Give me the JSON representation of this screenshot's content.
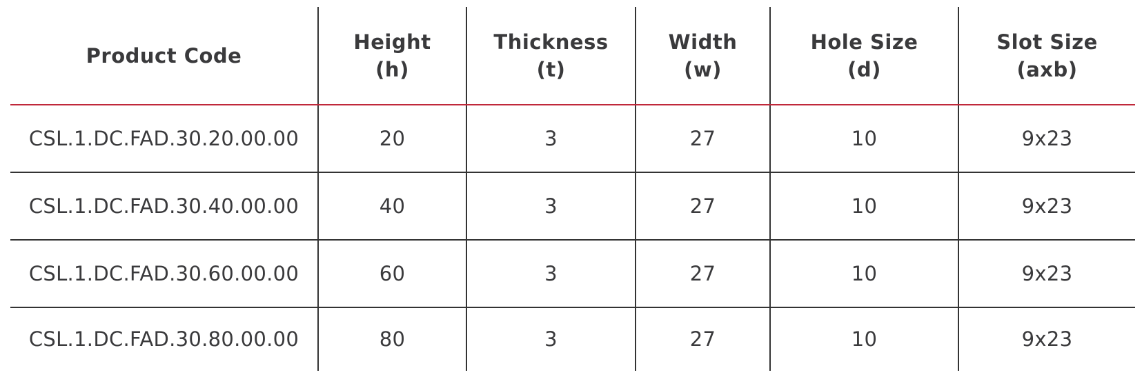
{
  "table": {
    "headers": [
      {
        "line1": "Product Code",
        "line2": ""
      },
      {
        "line1": "Height",
        "line2": "(h)"
      },
      {
        "line1": "Thickness",
        "line2": "(t)"
      },
      {
        "line1": "Width",
        "line2": "(w)"
      },
      {
        "line1": "Hole Size",
        "line2": "(d)"
      },
      {
        "line1": "Slot Size",
        "line2": "(axb)"
      }
    ],
    "rows": [
      [
        "CSL.1.DC.FAD.30.20.00.00",
        "20",
        "3",
        "27",
        "10",
        "9x23"
      ],
      [
        "CSL.1.DC.FAD.30.40.00.00",
        "40",
        "3",
        "27",
        "10",
        "9x23"
      ],
      [
        "CSL.1.DC.FAD.30.60.00.00",
        "60",
        "3",
        "27",
        "10",
        "9x23"
      ],
      [
        "CSL.1.DC.FAD.30.80.00.00",
        "80",
        "3",
        "27",
        "10",
        "9x23"
      ]
    ],
    "colors": {
      "header_rule": "#c0283a",
      "grid": "#333333",
      "text": "#3a3a3c"
    }
  }
}
